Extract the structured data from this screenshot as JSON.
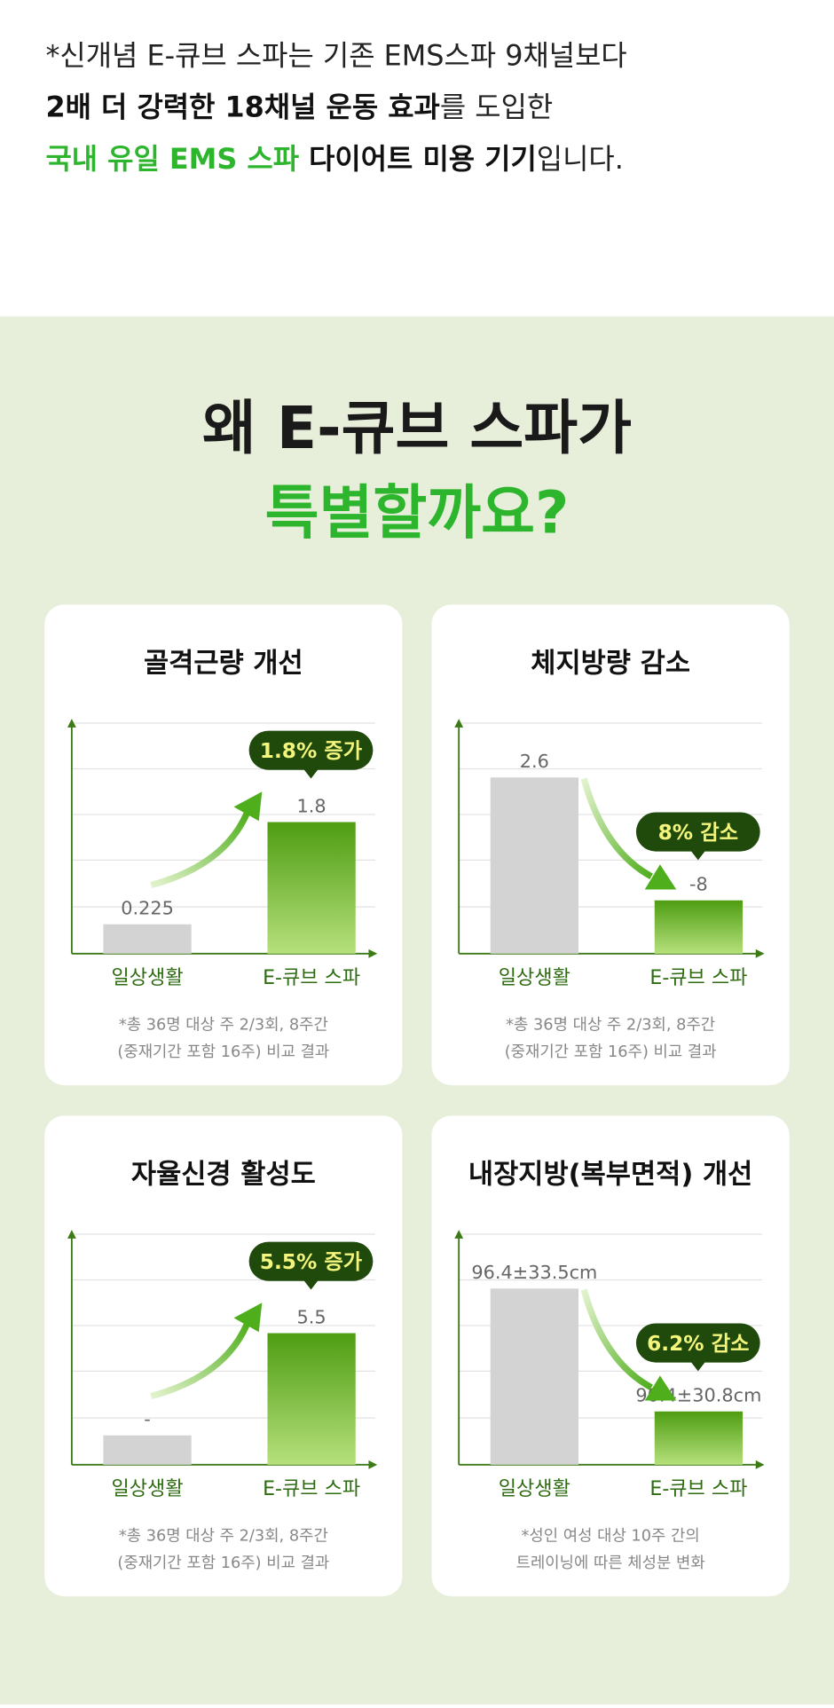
{
  "intro": {
    "lines": [
      [
        {
          "text": "*신개념 E-큐브 스파는 기존 EMS스파 9채널보다",
          "weight": "normal",
          "color": "#222222"
        }
      ],
      [
        {
          "text": "2배 더 강력한 18채널 운동 효과",
          "weight": "bold",
          "color": "#111111"
        },
        {
          "text": "를 도입한",
          "weight": "normal",
          "color": "#222222"
        }
      ],
      [
        {
          "text": "국내 유일 EMS 스파",
          "weight": "bold",
          "color": "#2db52d"
        },
        {
          "text": " 다이어트 미용 기기",
          "weight": "bold",
          "color": "#111111"
        },
        {
          "text": "입니다.",
          "weight": "normal",
          "color": "#222222"
        }
      ]
    ]
  },
  "section": {
    "title_line1": "왜 E-큐브 스파가",
    "title_line2": "특별할까요?"
  },
  "cards": [
    {
      "title": "골격근량 개선",
      "categories": [
        "일상생활",
        "E-큐브 스파"
      ],
      "bar_labels": [
        "0.225",
        "1.8"
      ],
      "badge": "1.8% 증가",
      "trend": "up",
      "note": [
        "*총 36명 대상 주 2/3회, 8주간",
        "(중재기간 포함 16주) 비교 결과"
      ]
    },
    {
      "title": "체지방량 감소",
      "categories": [
        "일상생활",
        "E-큐브 스파"
      ],
      "bar_labels": [
        "2.6",
        "-8"
      ],
      "badge": "8% 감소",
      "trend": "down",
      "note": [
        "*총 36명 대상 주 2/3회, 8주간",
        "(중재기간 포함 16주) 비교 결과"
      ]
    },
    {
      "title": "자율신경 활성도",
      "categories": [
        "일상생활",
        "E-큐브 스파"
      ],
      "bar_labels": [
        "-",
        "5.5"
      ],
      "badge": "5.5% 증가",
      "trend": "up",
      "note": [
        "*총 36명 대상 주 2/3회, 8주간",
        "(중재기간 포함 16주) 비교 결과"
      ]
    },
    {
      "title": "내장지방(복부면적) 개선",
      "categories": [
        "일상생활",
        "E-큐브 스파"
      ],
      "bar_labels": [
        "96.4±33.5cm",
        "90.4±30.8cm"
      ],
      "badge": "6.2% 감소",
      "trend": "down",
      "note": [
        "*성인 여성 대상 10주 간의",
        "트레이닝에 따른 체성분 변화"
      ]
    }
  ]
}
